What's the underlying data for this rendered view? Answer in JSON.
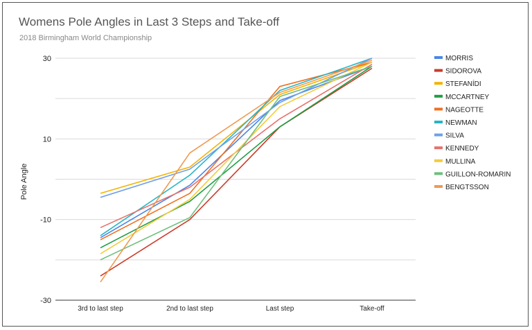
{
  "chart_data": {
    "type": "line",
    "title": "Womens Pole Angles in Last 3 Steps and Take-off",
    "subtitle": "2018 Birmingham World Championship",
    "xlabel": "",
    "ylabel": "Pole Angle",
    "categories": [
      "3rd to last step",
      "2nd to last step",
      "Last step",
      "Take-off"
    ],
    "ylim": [
      -30,
      30
    ],
    "yticks": [
      "30",
      "10",
      "-10",
      "-30"
    ],
    "yticks_values": [
      30,
      10,
      -10,
      -30
    ],
    "grid": true,
    "legend_position": "right",
    "series": [
      {
        "name": "MORRIS",
        "color": "#4a86e8",
        "values": [
          -14.5,
          -1.5,
          19.5,
          28.0
        ]
      },
      {
        "name": "SIDOROVA",
        "color": "#cc3b2a",
        "values": [
          -24.0,
          -10.0,
          13.0,
          27.5
        ]
      },
      {
        "name": "STEFANÍDI",
        "color": "#f2b400",
        "values": [
          -3.5,
          3.0,
          21.0,
          29.0
        ]
      },
      {
        "name": "MCCARTNEY",
        "color": "#1f9d44",
        "values": [
          -17.0,
          -5.5,
          13.0,
          28.0
        ]
      },
      {
        "name": "NAGEOTTE",
        "color": "#f07020",
        "values": [
          -15.0,
          -3.5,
          23.0,
          29.0
        ]
      },
      {
        "name": "NEWMAN",
        "color": "#26b5c6",
        "values": [
          -14.0,
          1.0,
          22.0,
          30.0
        ]
      },
      {
        "name": "SILVA",
        "color": "#6fa0e8",
        "values": [
          -4.5,
          2.5,
          19.0,
          30.0
        ]
      },
      {
        "name": "KENNEDY",
        "color": "#e8706a",
        "values": [
          -12.0,
          -2.0,
          15.0,
          28.5
        ]
      },
      {
        "name": "MULLINA",
        "color": "#f4cb3c",
        "values": [
          -18.5,
          -5.0,
          18.0,
          29.0
        ]
      },
      {
        "name": "GUILLON-ROMARIN",
        "color": "#6cbf7c",
        "values": [
          -20.0,
          -9.5,
          20.5,
          28.0
        ]
      },
      {
        "name": "BENGTSSON",
        "color": "#ef9a4f",
        "values": [
          -25.5,
          6.5,
          21.5,
          29.5
        ]
      }
    ]
  }
}
